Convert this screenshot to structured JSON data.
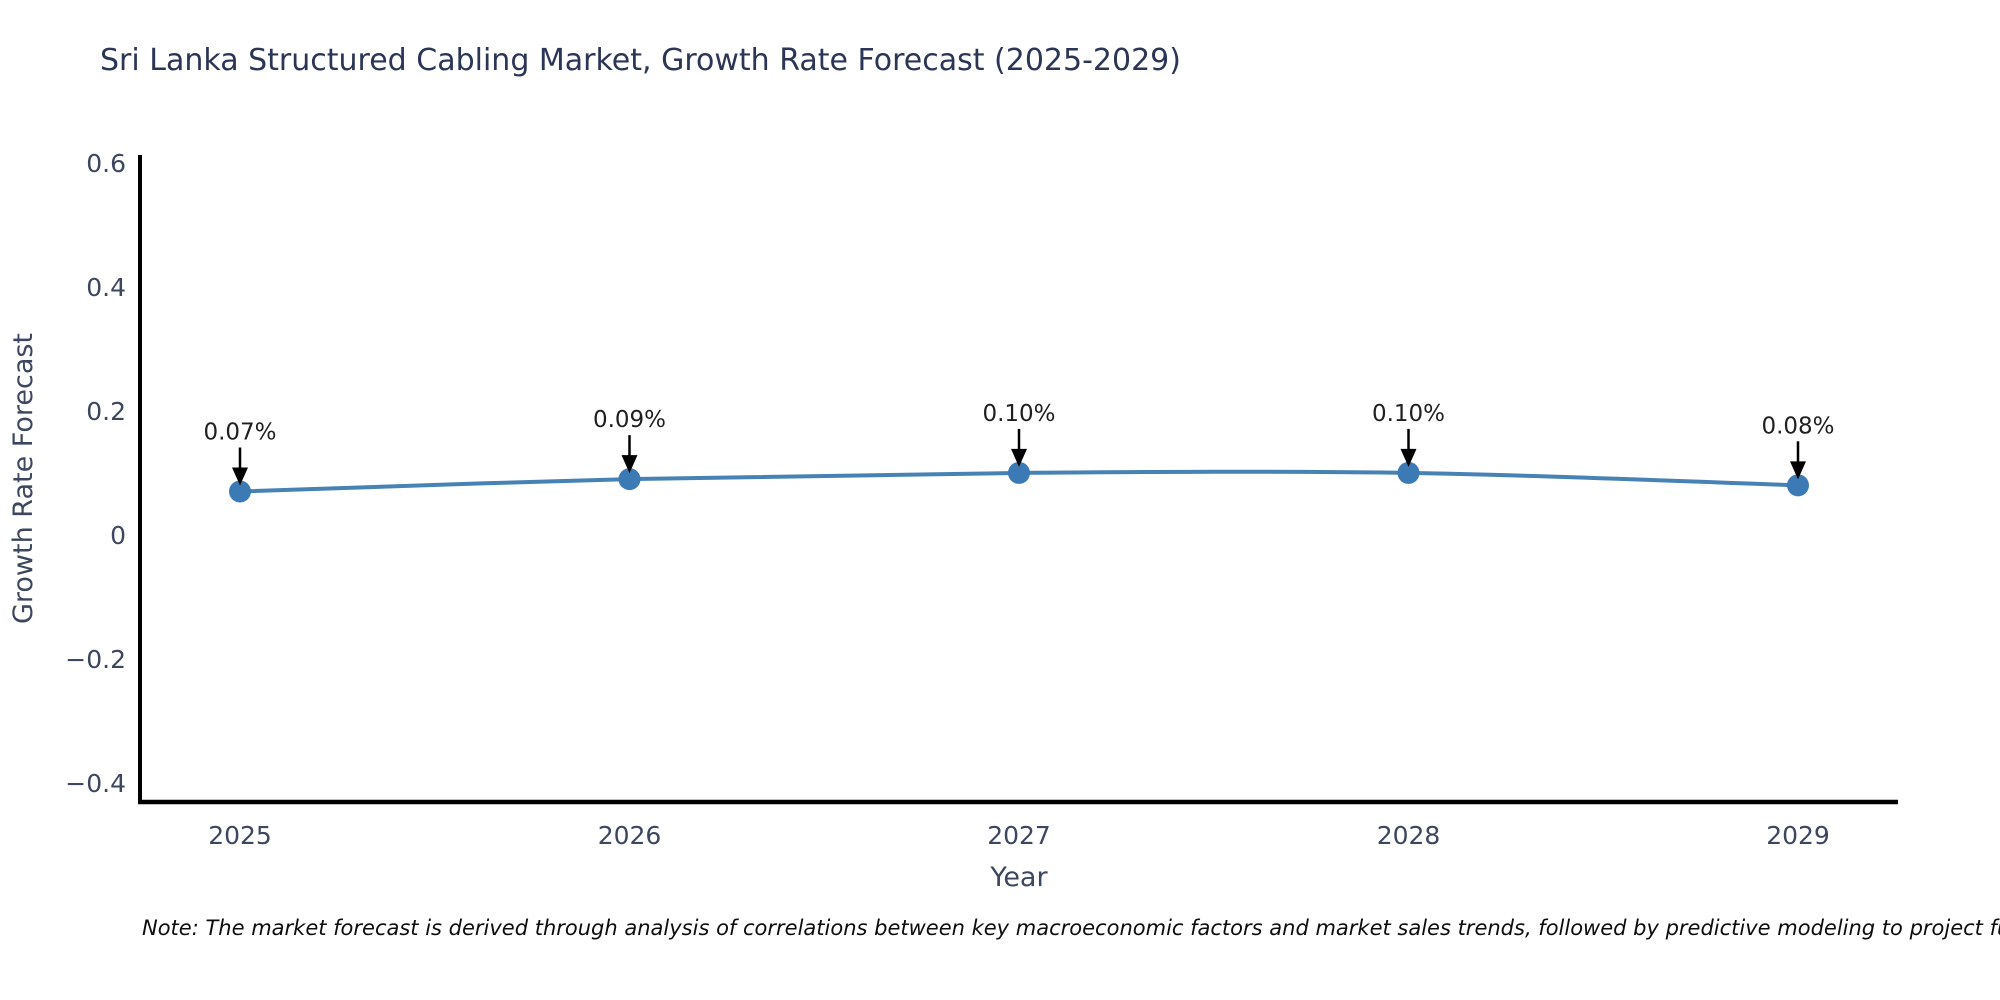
{
  "chart": {
    "note": "Note: The market forecast is derived through analysis of correlations between key macroeconomic factors and market sales trends, followed by predictive modeling to project future sa"
  },
  "chart_data": {
    "type": "line",
    "title": "Sri Lanka Structured Cabling Market, Growth Rate Forecast (2025-2029)",
    "xlabel": "Year",
    "ylabel": "Growth Rate Forecast",
    "x": [
      2025,
      2026,
      2027,
      2028,
      2029
    ],
    "series": [
      {
        "name": "Growth Rate Forecast",
        "values": [
          0.07,
          0.09,
          0.1,
          0.1,
          0.08
        ],
        "point_labels": [
          "0.07%",
          "0.09%",
          "0.10%",
          "0.10%",
          "0.08%"
        ]
      }
    ],
    "yticks": [
      -0.4,
      -0.2,
      0,
      0.2,
      0.4,
      0.6
    ],
    "ylim": [
      -0.431,
      0.613
    ],
    "grid": false,
    "legend_position": "none",
    "marker_style": "circle",
    "annotation_arrows": true,
    "colors": {
      "line": "#4682b4",
      "marker": "#3c7ab5",
      "axis_spine": "#000000",
      "tick_label": "#3c465f",
      "axis_title": "#3c465f",
      "title": "#2b3556",
      "annotation_text": "#1f1f1f",
      "arrow": "#000000",
      "background": "#ffffff"
    }
  }
}
